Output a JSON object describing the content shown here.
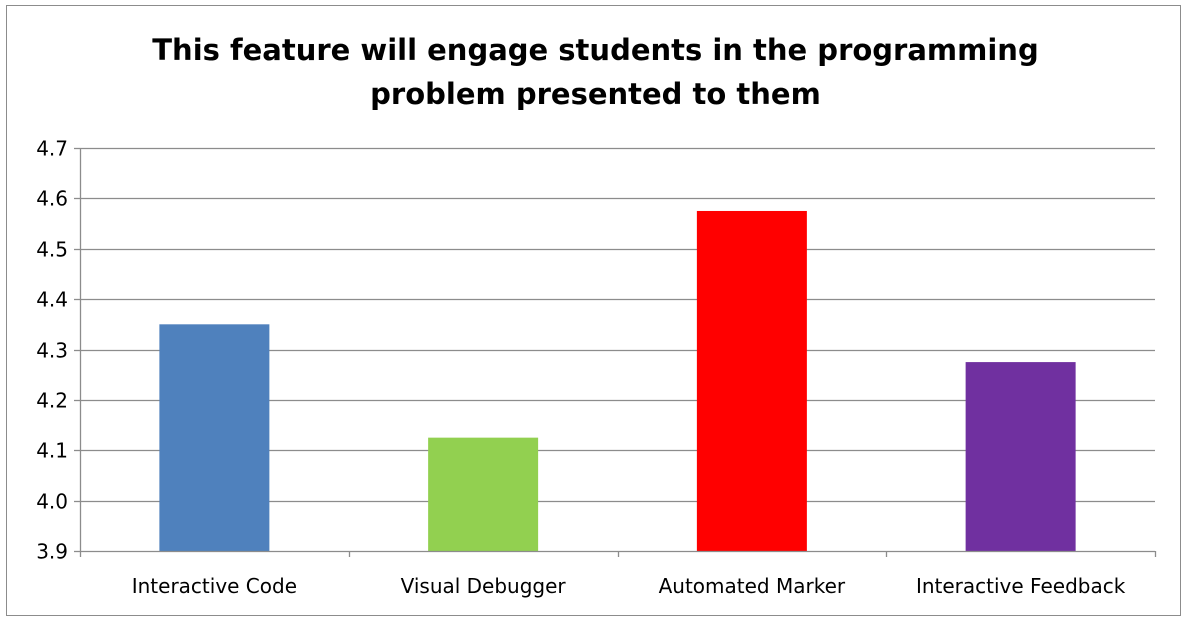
{
  "chart_data": {
    "type": "bar",
    "title": "This feature will engage students in the programming problem presented to them",
    "title_lines": [
      "This feature will engage students in the programming",
      "problem presented to them"
    ],
    "categories": [
      "Interactive Code",
      "Visual Debugger",
      "Automated Marker",
      "Interactive Feedback"
    ],
    "values": [
      4.35,
      4.125,
      4.575,
      4.275
    ],
    "colors": [
      "#4f81bd",
      "#92d050",
      "#ff0000",
      "#7030a0"
    ],
    "ylim": [
      3.9,
      4.7
    ],
    "yticks": [
      "3.9",
      "4.0",
      "4.1",
      "4.2",
      "4.3",
      "4.4",
      "4.5",
      "4.6",
      "4.7"
    ],
    "grid": true,
    "legend": "none",
    "xlabel": "",
    "ylabel": ""
  }
}
